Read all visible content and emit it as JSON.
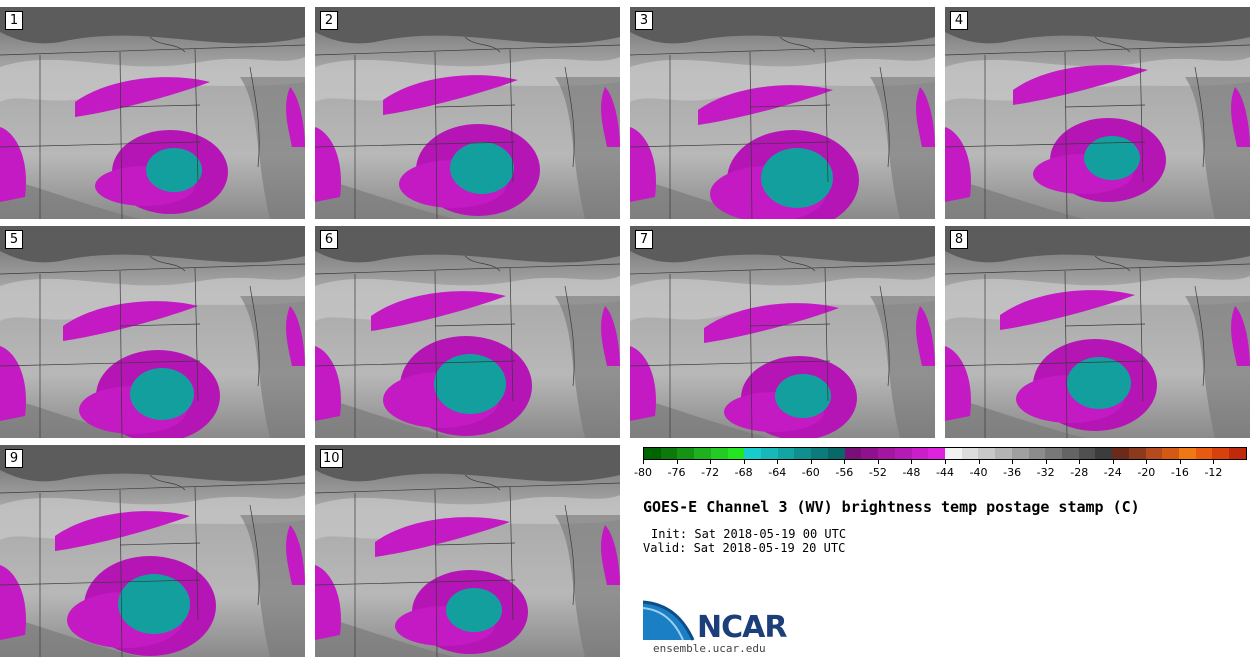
{
  "panels": [
    {
      "label": "1"
    },
    {
      "label": "2"
    },
    {
      "label": "3"
    },
    {
      "label": "4"
    },
    {
      "label": "5"
    },
    {
      "label": "6"
    },
    {
      "label": "7"
    },
    {
      "label": "8"
    },
    {
      "label": "9"
    },
    {
      "label": "10"
    }
  ],
  "colorbar": {
    "ticks": [
      "-80",
      "-76",
      "-72",
      "-68",
      "-64",
      "-60",
      "-56",
      "-52",
      "-48",
      "-44",
      "-40",
      "-36",
      "-32",
      "-28",
      "-24",
      "-20",
      "-16",
      "-12"
    ],
    "colors": [
      "#006400",
      "#0b7a0b",
      "#149414",
      "#1fb01f",
      "#22cc22",
      "#22e622",
      "#19cccc",
      "#17b8b8",
      "#13a4a4",
      "#108f8f",
      "#0c7b7b",
      "#086767",
      "#7a0f7a",
      "#8e128e",
      "#a216a2",
      "#b61ab6",
      "#ca1eca",
      "#de22de",
      "#f2f2f2",
      "#dcdcdc",
      "#c8c8c8",
      "#b4b4b4",
      "#a0a0a0",
      "#8c8c8c",
      "#787878",
      "#646464",
      "#505050",
      "#3c3c3c",
      "#6b2a1a",
      "#8c3a1e",
      "#b44a1e",
      "#d45a14",
      "#f07814",
      "#e85a10",
      "#d8400c",
      "#c02a0a"
    ]
  },
  "title": "GOES-E Channel 3 (WV) brightness temp postage stamp (C)",
  "init": "Init: Sat 2018-05-19 00 UTC",
  "valid": "Valid: Sat 2018-05-19 20 UTC",
  "logo": {
    "text": "NCAR",
    "url": "ensemble.ucar.edu"
  }
}
